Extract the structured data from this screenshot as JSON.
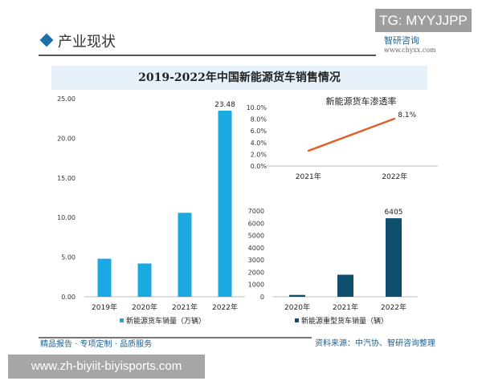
{
  "watermark_tg": "TG: MYYJJPP",
  "section_title": "产业现状",
  "logo": {
    "name": "智研咨询",
    "url": "www.chyxx.com"
  },
  "title": "2019-2022年中国新能源货车销售情况",
  "footer": {
    "slogan": "精品报告 · 专项定制 · 品质服务",
    "source": "资料来源：中汽协、智研咨询整理"
  },
  "overlay_url": "www.zh-biyiit-biyisports.com",
  "chart_data": [
    {
      "type": "bar",
      "categories": [
        "2019年",
        "2020年",
        "2021年",
        "2022年"
      ],
      "series": [
        {
          "name": "新能源货车销量（万辆）",
          "values": [
            4.8,
            4.2,
            10.6,
            23.48
          ],
          "color": "#1aa9e0"
        }
      ],
      "yticks": [
        "0.00",
        "5.00",
        "10.00",
        "15.00",
        "20.00",
        "25.00"
      ],
      "ylim": [
        0,
        25
      ],
      "data_labels": {
        "3": "23.48"
      },
      "legend": "bottom"
    },
    {
      "type": "line",
      "title": "新能源货车渗透率",
      "categories": [
        "2021年",
        "2022年"
      ],
      "series": [
        {
          "values": [
            2.6,
            8.1
          ],
          "color": "#e0602a"
        }
      ],
      "yticks": [
        "0.0%",
        "2.0%",
        "4.0%",
        "6.0%",
        "8.0%",
        "10.0%"
      ],
      "ylim": [
        0,
        10
      ],
      "data_labels": {
        "1": "8.1%"
      }
    },
    {
      "type": "bar",
      "categories": [
        "2020年",
        "2021年",
        "2022年"
      ],
      "series": [
        {
          "name": "新能源重型货车销量（辆）",
          "values": [
            150,
            1800,
            6405
          ],
          "color": "#0e4f6e"
        }
      ],
      "yticks": [
        "0",
        "1000",
        "2000",
        "3000",
        "4000",
        "5000",
        "6000",
        "7000"
      ],
      "ylim": [
        0,
        7000
      ],
      "data_labels": {
        "2": "6405"
      },
      "legend": "bottom"
    }
  ]
}
